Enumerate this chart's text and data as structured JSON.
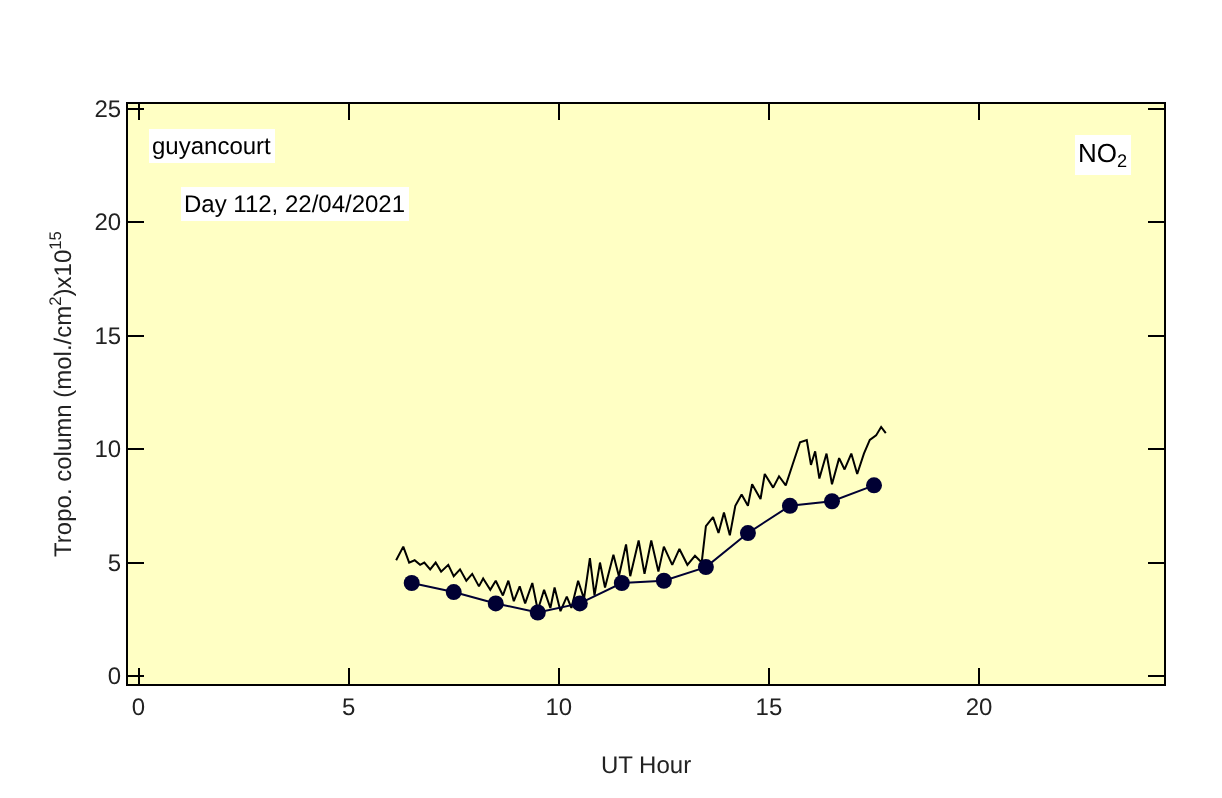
{
  "chart_data": {
    "type": "line",
    "xlabel": "UT Hour",
    "ylabel": "Tropo. column (mol./cm$^{2}$)x10$^{15}$",
    "annotations": [
      "guyancourt",
      "Day 112, 22/04/2021",
      "NO$_{2}$"
    ],
    "xlim": [
      -0.25,
      24.4
    ],
    "xticks": [
      0,
      5,
      10,
      15,
      20
    ],
    "ylim": [
      -0.35,
      25.2
    ],
    "yticks": [
      0,
      5,
      10,
      15,
      20,
      25
    ],
    "series": [
      {
        "color": "#000000",
        "marker": "none",
        "x": [
          6.13,
          6.3,
          6.44,
          6.57,
          6.7,
          6.8,
          6.94,
          7.07,
          7.2,
          7.37,
          7.5,
          7.65,
          7.8,
          7.94,
          8.1,
          8.2,
          8.37,
          8.5,
          8.67,
          8.8,
          8.93,
          9.07,
          9.2,
          9.37,
          9.5,
          9.65,
          9.8,
          9.9,
          10.04,
          10.19,
          10.3,
          10.46,
          10.6,
          10.74,
          10.85,
          10.98,
          11.1,
          11.3,
          11.43,
          11.6,
          11.7,
          11.9,
          12.04,
          12.2,
          12.37,
          12.5,
          12.7,
          12.87,
          13.06,
          13.24,
          13.4,
          13.5,
          13.67,
          13.8,
          13.93,
          14.07,
          14.2,
          14.35,
          14.5,
          14.6,
          14.8,
          14.9,
          15.1,
          15.24,
          15.4,
          15.56,
          15.74,
          15.9,
          16.0,
          16.1,
          16.2,
          16.37,
          16.5,
          16.67,
          16.8,
          16.96,
          17.1,
          17.26,
          17.4,
          17.55,
          17.67,
          17.78
        ],
        "values": [
          5.1,
          5.7,
          5.0,
          5.1,
          4.9,
          5.0,
          4.7,
          5.0,
          4.6,
          4.9,
          4.4,
          4.7,
          4.2,
          4.5,
          3.95,
          4.3,
          3.8,
          4.2,
          3.55,
          4.2,
          3.3,
          3.95,
          3.2,
          4.1,
          2.9,
          3.8,
          3.0,
          3.9,
          2.86,
          3.5,
          3.0,
          4.2,
          3.4,
          5.2,
          3.55,
          5.0,
          3.9,
          5.34,
          4.4,
          5.8,
          4.4,
          5.97,
          4.5,
          5.97,
          4.6,
          5.7,
          4.9,
          5.6,
          4.9,
          5.3,
          5.0,
          6.6,
          7.0,
          6.3,
          7.2,
          6.2,
          7.5,
          8.0,
          7.5,
          8.45,
          7.8,
          8.9,
          8.3,
          8.8,
          8.4,
          9.3,
          10.3,
          10.4,
          9.3,
          9.9,
          8.7,
          9.8,
          8.45,
          9.6,
          9.1,
          9.8,
          8.9,
          9.8,
          10.4,
          10.6,
          10.97,
          10.7
        ]
      },
      {
        "color": "#000033",
        "marker": "circle",
        "x": [
          6.5,
          7.5,
          8.5,
          9.5,
          10.5,
          11.5,
          12.5,
          13.5,
          14.5,
          15.5,
          16.5,
          17.5
        ],
        "values": [
          4.1,
          3.7,
          3.2,
          2.8,
          3.2,
          4.1,
          4.2,
          4.8,
          6.3,
          7.5,
          7.7,
          8.4
        ]
      }
    ]
  }
}
